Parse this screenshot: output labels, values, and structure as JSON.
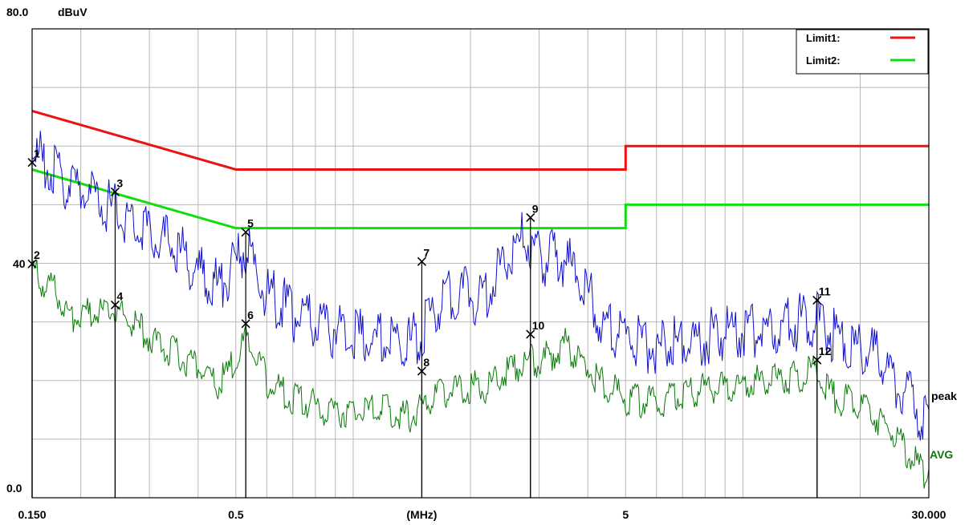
{
  "chart_data": {
    "type": "line",
    "title": "",
    "xlabel": "(MHz)",
    "ylabel": "dBuV",
    "x_scale": "log",
    "xlim": [
      0.15,
      30
    ],
    "ylim": [
      0,
      80
    ],
    "y_top_label": "80.0",
    "y_bottom_label": "0.0",
    "y_mid_label": "40",
    "x_tick_labels": [
      "0.150",
      "0.5",
      "(MHz)",
      "5",
      "30.000"
    ],
    "grid": true,
    "legend_position": "top-right",
    "legend": [
      {
        "label": "Limit1:",
        "color": "#ee1111"
      },
      {
        "label": "Limit2:",
        "color": "#11dd11"
      }
    ],
    "series": [
      {
        "name": "Limit1",
        "color": "#ee1111",
        "points": [
          [
            0.15,
            66
          ],
          [
            0.5,
            56
          ],
          [
            5,
            56
          ],
          [
            5,
            60
          ],
          [
            30,
            60
          ]
        ]
      },
      {
        "name": "Limit2",
        "color": "#11dd11",
        "points": [
          [
            0.15,
            56
          ],
          [
            0.5,
            46
          ],
          [
            5,
            46
          ],
          [
            5,
            50
          ],
          [
            30,
            50
          ]
        ]
      },
      {
        "name": "peak",
        "color": "#1010cc",
        "points": [
          [
            0.15,
            61.5
          ],
          [
            0.17,
            58
          ],
          [
            0.2,
            55
          ],
          [
            0.25,
            51
          ],
          [
            0.3,
            48
          ],
          [
            0.35,
            45
          ],
          [
            0.4,
            41
          ],
          [
            0.45,
            38.5
          ],
          [
            0.5,
            42
          ],
          [
            0.53,
            45.5
          ],
          [
            0.56,
            41
          ],
          [
            0.6,
            37.5
          ],
          [
            0.7,
            34
          ],
          [
            0.8,
            32
          ],
          [
            1.0,
            30.5
          ],
          [
            1.2,
            29.5
          ],
          [
            1.4,
            29
          ],
          [
            1.5,
            31
          ],
          [
            1.7,
            36
          ],
          [
            1.9,
            38
          ],
          [
            2.1,
            36
          ],
          [
            2.3,
            39
          ],
          [
            2.5,
            45
          ],
          [
            2.75,
            46.5
          ],
          [
            3.0,
            43.5
          ],
          [
            3.5,
            43
          ],
          [
            3.8,
            40.5
          ],
          [
            4.2,
            34
          ],
          [
            4.7,
            31
          ],
          [
            5.2,
            29
          ],
          [
            6,
            28
          ],
          [
            7,
            29
          ],
          [
            8,
            30
          ],
          [
            10,
            31
          ],
          [
            12,
            31.5
          ],
          [
            14,
            32.5
          ],
          [
            15.5,
            33
          ],
          [
            17,
            30.5
          ],
          [
            20,
            28
          ],
          [
            23,
            25.5
          ],
          [
            26,
            20.5
          ],
          [
            30,
            15
          ]
        ]
      },
      {
        "name": "AVG",
        "color": "#0a7a0a",
        "points": [
          [
            0.15,
            40
          ],
          [
            0.17,
            37
          ],
          [
            0.19,
            32
          ],
          [
            0.22,
            33
          ],
          [
            0.25,
            33
          ],
          [
            0.3,
            29
          ],
          [
            0.35,
            26
          ],
          [
            0.4,
            24
          ],
          [
            0.45,
            20.5
          ],
          [
            0.5,
            25
          ],
          [
            0.53,
            28.5
          ],
          [
            0.56,
            25.5
          ],
          [
            0.6,
            21.5
          ],
          [
            0.7,
            18.5
          ],
          [
            0.8,
            17
          ],
          [
            1.0,
            16
          ],
          [
            1.2,
            16.5
          ],
          [
            1.4,
            15.5
          ],
          [
            1.6,
            18.5
          ],
          [
            1.9,
            20.5
          ],
          [
            2.2,
            20.5
          ],
          [
            2.5,
            23
          ],
          [
            2.75,
            25
          ],
          [
            3.0,
            24.5
          ],
          [
            3.5,
            27.5
          ],
          [
            3.8,
            25.5
          ],
          [
            4.2,
            21.5
          ],
          [
            5,
            18.5
          ],
          [
            6,
            17.5
          ],
          [
            7,
            19.5
          ],
          [
            8,
            20
          ],
          [
            10,
            21
          ],
          [
            12,
            21.5
          ],
          [
            14,
            22.5
          ],
          [
            15.5,
            23
          ],
          [
            17,
            19
          ],
          [
            20,
            17
          ],
          [
            23,
            14.5
          ],
          [
            26,
            9.5
          ],
          [
            30,
            5
          ]
        ]
      }
    ],
    "series_end_labels": [
      "peak",
      "AVG"
    ],
    "markers": [
      {
        "label": "1",
        "x": 0.15,
        "y": 57.2
      },
      {
        "label": "2",
        "x": 0.15,
        "y": 39.9
      },
      {
        "label": "3",
        "x": 0.245,
        "y": 52.2
      },
      {
        "label": "4",
        "x": 0.245,
        "y": 32.9
      },
      {
        "label": "5",
        "x": 0.53,
        "y": 45.3
      },
      {
        "label": "6",
        "x": 0.53,
        "y": 29.7
      },
      {
        "label": "7",
        "x": 1.5,
        "y": 40.3
      },
      {
        "label": "8",
        "x": 1.5,
        "y": 21.6
      },
      {
        "label": "9",
        "x": 2.85,
        "y": 47.8
      },
      {
        "label": "10",
        "x": 2.85,
        "y": 27.9
      },
      {
        "label": "11",
        "x": 15.5,
        "y": 33.7
      },
      {
        "label": "12",
        "x": 15.5,
        "y": 23.5
      }
    ]
  }
}
